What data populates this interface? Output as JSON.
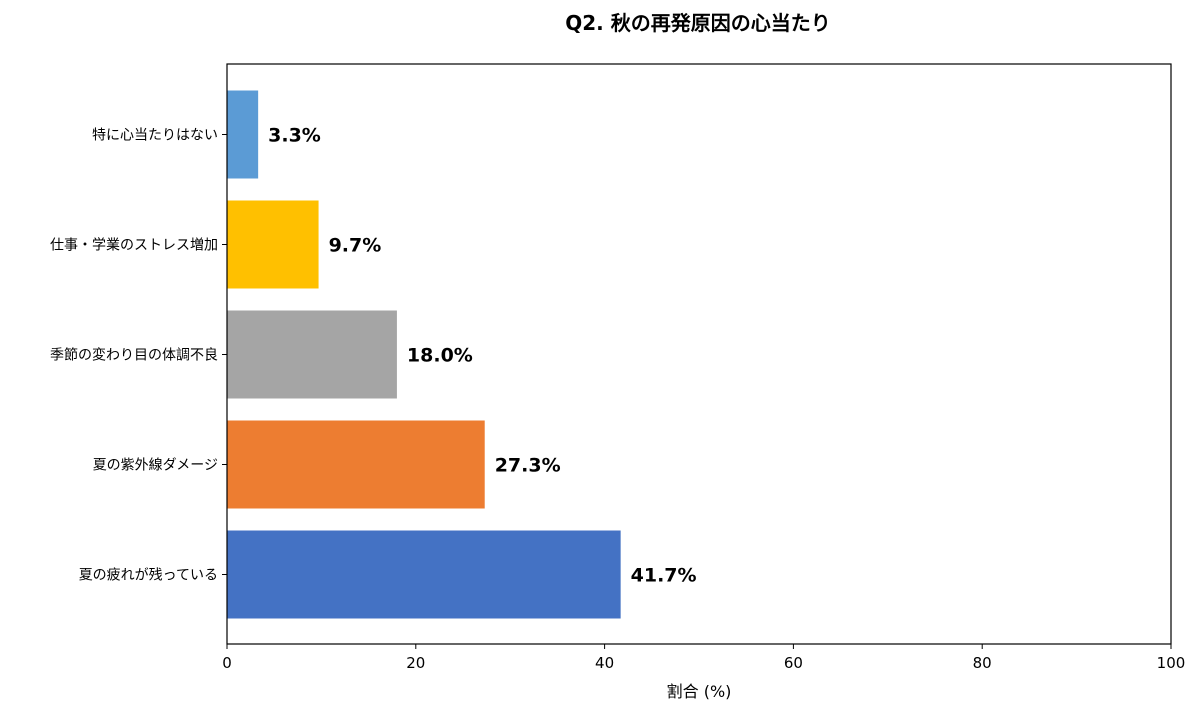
{
  "chart_data": {
    "type": "bar",
    "orientation": "horizontal",
    "title": "Q2. 秋の再発原因の心当たり",
    "xlabel": "割合 (%)",
    "ylabel": "",
    "xlim": [
      0,
      100
    ],
    "xticks": [
      0,
      20,
      40,
      60,
      80,
      100
    ],
    "grid": false,
    "legend": "none",
    "categories": [
      "特に心当たりはない",
      "仕事・学業のストレス増加",
      "季節の変わり目の体調不良",
      "夏の紫外線ダメージ",
      "夏の疲れが残っている"
    ],
    "values": [
      3.3,
      9.7,
      18.0,
      27.3,
      41.7
    ],
    "value_labels": [
      "3.3%",
      "9.7%",
      "18.0%",
      "27.3%",
      "41.7%"
    ],
    "colors": [
      "#5b9bd5",
      "#ffc000",
      "#a5a5a5",
      "#ed7d31",
      "#4472c4"
    ]
  }
}
